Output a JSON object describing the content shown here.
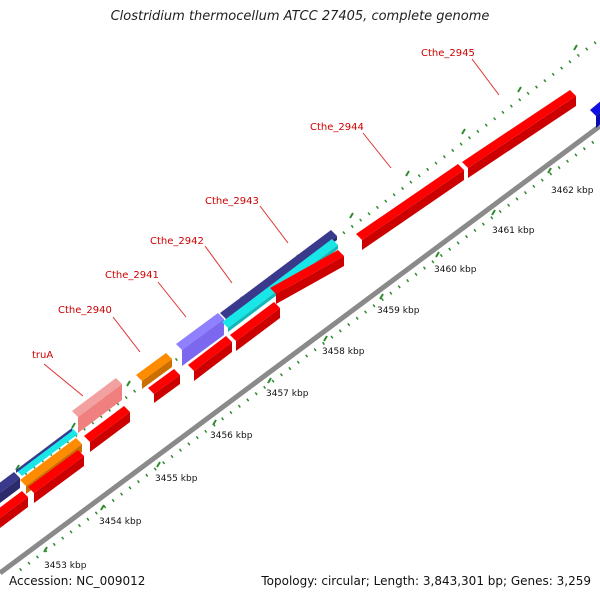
{
  "title": "Clostridium thermocellum ATCC 27405, complete genome",
  "footer": {
    "accession": "Accession: NC_009012",
    "stats": "Topology: circular; Length: 3,843,301 bp; Genes: 3,259"
  },
  "colors": {
    "backbone": "#8a8a8a",
    "ruler_dots": "#2e8b2e",
    "label_text": "#cc0000",
    "label_line": "#e03030",
    "gene_red": "#ff0000",
    "gene_orange": "#ff8c00",
    "gene_cyan": "#19e6e6",
    "gene_darkblue": "#3a3a8c",
    "gene_lightpurple": "#7b68ee",
    "gene_pink": "#f08080",
    "gene_blue": "#1010e0"
  },
  "scale_labels": [
    "3453 kbp",
    "3454 kbp",
    "3455 kbp",
    "3456 kbp",
    "3457 kbp",
    "3458 kbp",
    "3459 kbp",
    "3460 kbp",
    "3461 kbp",
    "3462 kbp"
  ],
  "gene_labels": [
    "truA",
    "Cthe_2940",
    "Cthe_2941",
    "Cthe_2942",
    "Cthe_2943",
    "Cthe_2944",
    "Cthe_2945"
  ]
}
